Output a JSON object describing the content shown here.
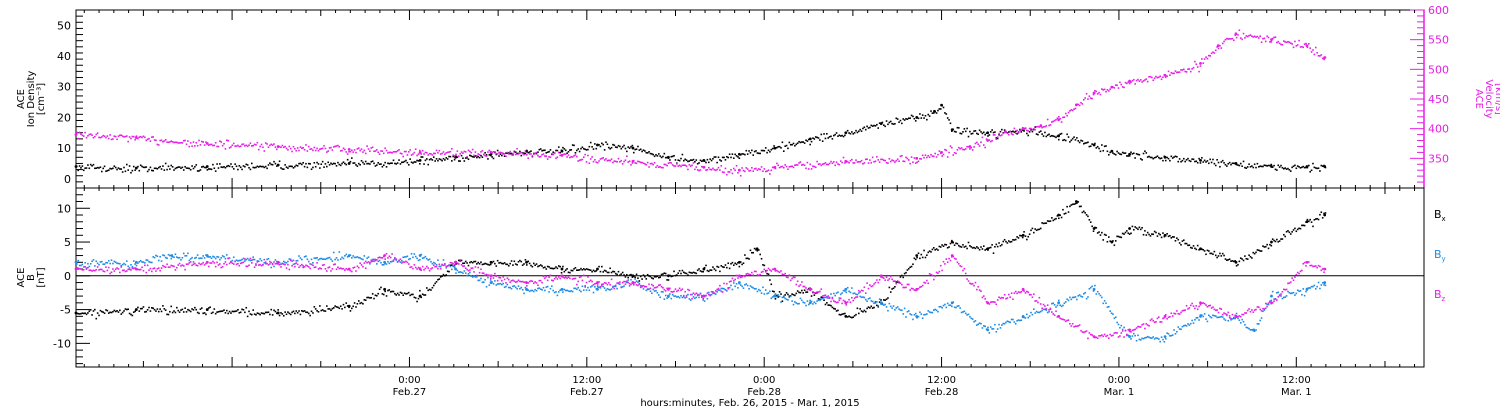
{
  "xlabel": "hours:minutes, Feb. 26, 2015 - Mar.  1, 2015",
  "time_ticks": [
    {
      "t": 3.77,
      "top": "0:00",
      "bottom": "Feb.27"
    },
    {
      "t": 4.27,
      "top": "12:00",
      "bottom": "Feb.27"
    },
    {
      "t": 4.77,
      "top": "0:00",
      "bottom": "Feb.28"
    },
    {
      "t": 5.27,
      "top": "12:00",
      "bottom": "Feb.28"
    },
    {
      "t": 5.77,
      "top": "0:00",
      "bottom": "Mar. 1"
    },
    {
      "t": 6.27,
      "top": "12:00",
      "bottom": "Mar. 1"
    }
  ],
  "colors": {
    "black": "#000000",
    "magenta": "#e61ee6",
    "blue": "#1e8ce6"
  },
  "chart_data": [
    {
      "type": "scatter",
      "panel": "top",
      "ylabel_left": [
        "ACE",
        "Ion Density",
        "[cm⁻³]"
      ],
      "ylabel_right": [
        "ACE",
        "Velocity",
        "[km/s]"
      ],
      "xlim_days": [
        2.83,
        6.63
      ],
      "ylim_left": [
        -3,
        55
      ],
      "yticks_left": [
        0,
        10,
        20,
        30,
        40,
        50
      ],
      "ylim_right": [
        300,
        600
      ],
      "yticks_right": [
        350,
        400,
        450,
        500,
        550,
        600
      ],
      "series": [
        {
          "axis": "left",
          "color": "#000000",
          "x": [
            2.83,
            3.0,
            3.2,
            3.4,
            3.6,
            3.8,
            3.9,
            4.0,
            4.1,
            4.2,
            4.3,
            4.4,
            4.5,
            4.6,
            4.7,
            4.8,
            4.9,
            5.0,
            5.1,
            5.2,
            5.25,
            5.27,
            5.3,
            5.4,
            5.5,
            5.6,
            5.7,
            5.75,
            5.8,
            5.9,
            6.0,
            6.1,
            6.2,
            6.3,
            6.35
          ],
          "y": [
            4,
            3.5,
            4,
            4.5,
            5,
            6,
            7,
            8,
            9,
            9,
            11,
            10,
            7,
            6,
            8,
            10,
            13,
            15,
            18,
            20,
            22,
            24,
            16,
            15,
            16,
            14,
            11,
            9,
            8,
            7,
            6,
            5,
            4,
            4,
            4
          ]
        },
        {
          "axis": "right",
          "color": "#e61ee6",
          "x": [
            2.83,
            3.0,
            3.2,
            3.4,
            3.6,
            3.8,
            4.0,
            4.2,
            4.4,
            4.6,
            4.7,
            4.8,
            5.0,
            5.2,
            5.27,
            5.35,
            5.4,
            5.45,
            5.5,
            5.55,
            5.6,
            5.65,
            5.7,
            5.75,
            5.8,
            5.9,
            6.0,
            6.05,
            6.1,
            6.2,
            6.3,
            6.35
          ],
          "y": [
            390,
            385,
            375,
            370,
            365,
            360,
            360,
            355,
            345,
            335,
            330,
            335,
            345,
            350,
            360,
            370,
            380,
            395,
            400,
            405,
            415,
            440,
            460,
            470,
            480,
            490,
            510,
            540,
            560,
            550,
            540,
            520
          ]
        }
      ]
    },
    {
      "type": "scatter",
      "panel": "bottom",
      "ylabel_left": [
        "ACE",
        "B",
        "[nT]"
      ],
      "xlim_days": [
        2.83,
        6.63
      ],
      "ylim": [
        -13.5,
        13
      ],
      "yticks": [
        -10,
        -5,
        0,
        5,
        10
      ],
      "zero_line": true,
      "legend": [
        {
          "label": "B",
          "sub": "x",
          "color": "#000000"
        },
        {
          "label": "B",
          "sub": "y",
          "color": "#1e8ce6"
        },
        {
          "label": "B",
          "sub": "z",
          "color": "#e61ee6"
        }
      ],
      "series": [
        {
          "name": "Bx",
          "color": "#000000",
          "x": [
            2.83,
            3.0,
            3.2,
            3.4,
            3.6,
            3.7,
            3.8,
            3.9,
            4.0,
            4.1,
            4.2,
            4.3,
            4.4,
            4.5,
            4.6,
            4.7,
            4.75,
            4.8,
            4.9,
            5.0,
            5.1,
            5.2,
            5.3,
            5.4,
            5.5,
            5.6,
            5.65,
            5.7,
            5.75,
            5.8,
            5.9,
            6.0,
            6.1,
            6.2,
            6.3,
            6.35
          ],
          "y": [
            -5.5,
            -5,
            -5,
            -5.5,
            -4.5,
            -2,
            -3,
            2,
            2,
            2,
            1,
            1,
            0,
            0,
            1,
            2,
            4,
            -3,
            -2,
            -6,
            -4,
            3,
            5,
            4,
            6,
            9,
            11,
            7,
            5,
            7,
            6,
            4,
            2,
            5,
            8,
            9
          ]
        },
        {
          "name": "By",
          "color": "#1e8ce6",
          "x": [
            2.83,
            3.0,
            3.1,
            3.2,
            3.4,
            3.6,
            3.7,
            3.8,
            3.9,
            4.0,
            4.1,
            4.2,
            4.3,
            4.4,
            4.5,
            4.6,
            4.7,
            4.8,
            4.9,
            5.0,
            5.1,
            5.2,
            5.3,
            5.4,
            5.5,
            5.6,
            5.7,
            5.8,
            5.9,
            6.0,
            6.1,
            6.15,
            6.2,
            6.3,
            6.35
          ],
          "y": [
            2,
            2,
            3,
            3,
            2,
            3,
            2,
            3,
            1,
            -1,
            -2,
            -2,
            -2,
            -1,
            -3,
            -3,
            -1,
            -3,
            -4,
            -2,
            -4,
            -6,
            -4,
            -8,
            -6,
            -4,
            -2,
            -9,
            -9,
            -6,
            -6,
            -8,
            -3,
            -2,
            -1
          ]
        },
        {
          "name": "Bz",
          "color": "#e61ee6",
          "x": [
            2.83,
            3.0,
            3.2,
            3.4,
            3.6,
            3.7,
            3.8,
            3.9,
            4.0,
            4.1,
            4.2,
            4.3,
            4.4,
            4.5,
            4.6,
            4.7,
            4.8,
            4.9,
            5.0,
            5.1,
            5.2,
            5.3,
            5.4,
            5.5,
            5.6,
            5.7,
            5.8,
            5.9,
            6.0,
            6.1,
            6.2,
            6.3,
            6.35
          ],
          "y": [
            1,
            1,
            2,
            2,
            1,
            3,
            1,
            2,
            0,
            -1,
            0,
            -1,
            -1,
            -2,
            -3,
            0,
            1,
            -2,
            -4,
            0,
            -2,
            3,
            -4,
            -2,
            -6,
            -9,
            -8,
            -6,
            -4,
            -6,
            -4,
            2,
            1
          ]
        }
      ]
    }
  ]
}
